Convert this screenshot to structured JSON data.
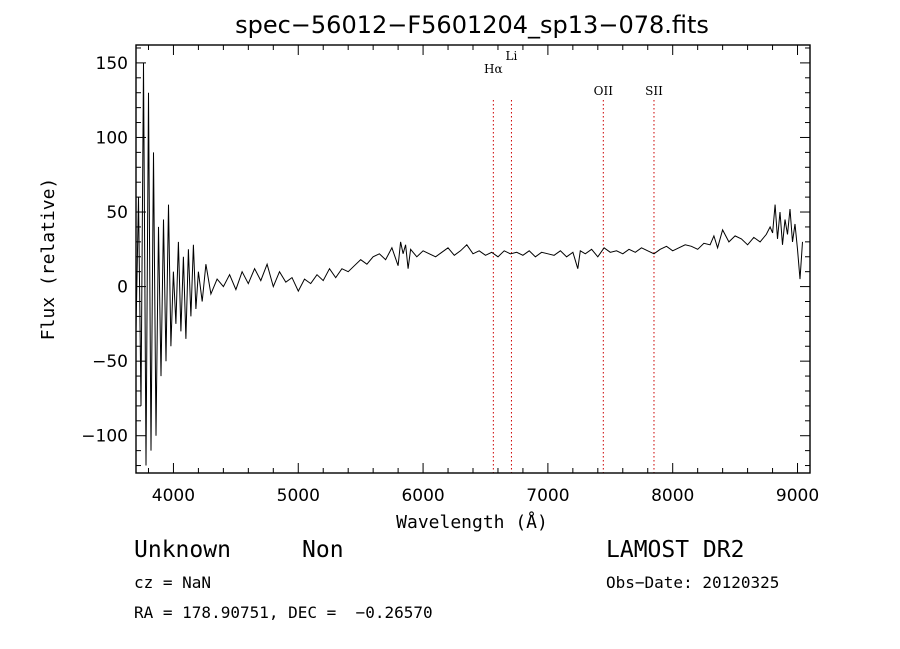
{
  "chart_data": {
    "type": "line",
    "title": "spec−56012−F5601204_sp13−078.fits",
    "xlabel": "Wavelength (Å)",
    "ylabel": "Flux (relative)",
    "xlim": [
      3700,
      9100
    ],
    "ylim": [
      -125,
      162
    ],
    "x_ticks": [
      4000,
      5000,
      6000,
      7000,
      8000,
      9000
    ],
    "x_tick_labels": [
      "4000",
      "5000",
      "6000",
      "7000",
      "8000",
      "9000"
    ],
    "y_ticks": [
      -100,
      -50,
      0,
      50,
      100,
      150
    ],
    "y_tick_labels": [
      "−100",
      "−50",
      "0",
      "50",
      "100",
      "150"
    ],
    "grid": false,
    "series": [
      {
        "color": "#000000",
        "x": [
          3700,
          3720,
          3740,
          3760,
          3780,
          3800,
          3820,
          3840,
          3860,
          3880,
          3900,
          3920,
          3940,
          3960,
          3980,
          4000,
          4020,
          4040,
          4060,
          4080,
          4100,
          4120,
          4140,
          4160,
          4180,
          4200,
          4230,
          4260,
          4300,
          4350,
          4400,
          4450,
          4500,
          4550,
          4600,
          4650,
          4700,
          4750,
          4800,
          4850,
          4900,
          4950,
          5000,
          5050,
          5100,
          5150,
          5200,
          5250,
          5300,
          5350,
          5400,
          5450,
          5500,
          5550,
          5600,
          5650,
          5700,
          5750,
          5800,
          5820,
          5840,
          5860,
          5880,
          5900,
          5950,
          6000,
          6050,
          6100,
          6150,
          6200,
          6250,
          6300,
          6350,
          6400,
          6450,
          6500,
          6550,
          6600,
          6650,
          6700,
          6750,
          6800,
          6850,
          6900,
          6950,
          7000,
          7050,
          7100,
          7150,
          7200,
          7240,
          7260,
          7300,
          7350,
          7400,
          7450,
          7500,
          7550,
          7600,
          7650,
          7700,
          7750,
          7800,
          7850,
          7900,
          7950,
          8000,
          8050,
          8100,
          8150,
          8200,
          8250,
          8300,
          8330,
          8360,
          8400,
          8450,
          8500,
          8550,
          8600,
          8650,
          8700,
          8750,
          8780,
          8800,
          8820,
          8840,
          8860,
          8880,
          8900,
          8920,
          8940,
          8960,
          8980,
          9000,
          9020,
          9040
        ],
        "y": [
          -30,
          60,
          -80,
          150,
          -120,
          130,
          -110,
          90,
          -100,
          40,
          -60,
          45,
          -50,
          55,
          -40,
          10,
          -25,
          30,
          -30,
          20,
          -35,
          25,
          -20,
          28,
          -15,
          10,
          -10,
          15,
          -5,
          5,
          0,
          8,
          -2,
          10,
          2,
          12,
          4,
          15,
          0,
          10,
          3,
          6,
          -3,
          5,
          2,
          8,
          4,
          12,
          6,
          12,
          10,
          14,
          18,
          15,
          20,
          22,
          18,
          26,
          14,
          30,
          22,
          28,
          12,
          25,
          20,
          24,
          22,
          20,
          23,
          26,
          21,
          24,
          28,
          22,
          24,
          21,
          23,
          20,
          24,
          22,
          23,
          21,
          24,
          20,
          23,
          22,
          21,
          24,
          20,
          23,
          12,
          24,
          22,
          25,
          20,
          26,
          23,
          24,
          22,
          25,
          23,
          26,
          24,
          22,
          25,
          27,
          24,
          26,
          28,
          27,
          25,
          29,
          28,
          34,
          26,
          38,
          30,
          34,
          32,
          28,
          33,
          30,
          35,
          40,
          36,
          55,
          32,
          50,
          28,
          45,
          35,
          52,
          30,
          42,
          25,
          5,
          30
        ]
      }
    ],
    "reference_lines": [
      {
        "label": "Hα",
        "x": 6563,
        "color": "#cc0000"
      },
      {
        "label": "Li",
        "x": 6708,
        "color": "#cc0000"
      },
      {
        "label": "OII",
        "x": 7444,
        "color": "#cc0000"
      },
      {
        "label": "SII",
        "x": 7850,
        "color": "#cc0000"
      }
    ]
  },
  "footer": {
    "object_class": "Unknown",
    "subclass": "Non",
    "cz": "cz = NaN",
    "coords": "RA = 178.90751, DEC =  −0.26570",
    "survey": "LAMOST DR2",
    "obs_date": "Obs−Date: 20120325"
  }
}
